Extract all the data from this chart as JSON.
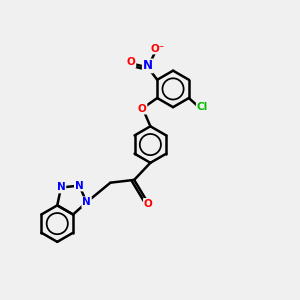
{
  "bg_color": "#f0f0f0",
  "bond_color": "#000000",
  "bond_width": 1.8,
  "atom_colors": {
    "N": "#0000ff",
    "O": "#ff0000",
    "Cl": "#00bb00"
  },
  "font_size": 7.5,
  "fig_size": [
    3.0,
    3.0
  ],
  "dpi": 100
}
